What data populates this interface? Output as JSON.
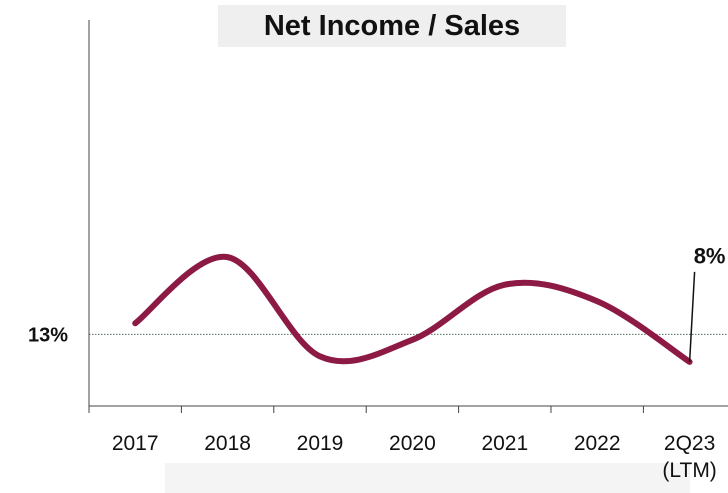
{
  "chart_data": {
    "type": "line",
    "title": "Net Income / Sales",
    "categories": [
      "2017",
      "2018",
      "2019",
      "2020",
      "2021",
      "2022",
      "2Q23\n(LTM)"
    ],
    "series": [
      {
        "name": "Net Income / Sales",
        "color": "#8c1a45",
        "values": [
          15,
          27,
          9,
          12,
          22,
          19,
          8
        ],
        "value_labels": [
          null,
          null,
          null,
          null,
          null,
          null,
          "8%"
        ]
      }
    ],
    "ylim": [
      0,
      70
    ],
    "reference_line": {
      "value": 13,
      "label": "13%"
    }
  }
}
